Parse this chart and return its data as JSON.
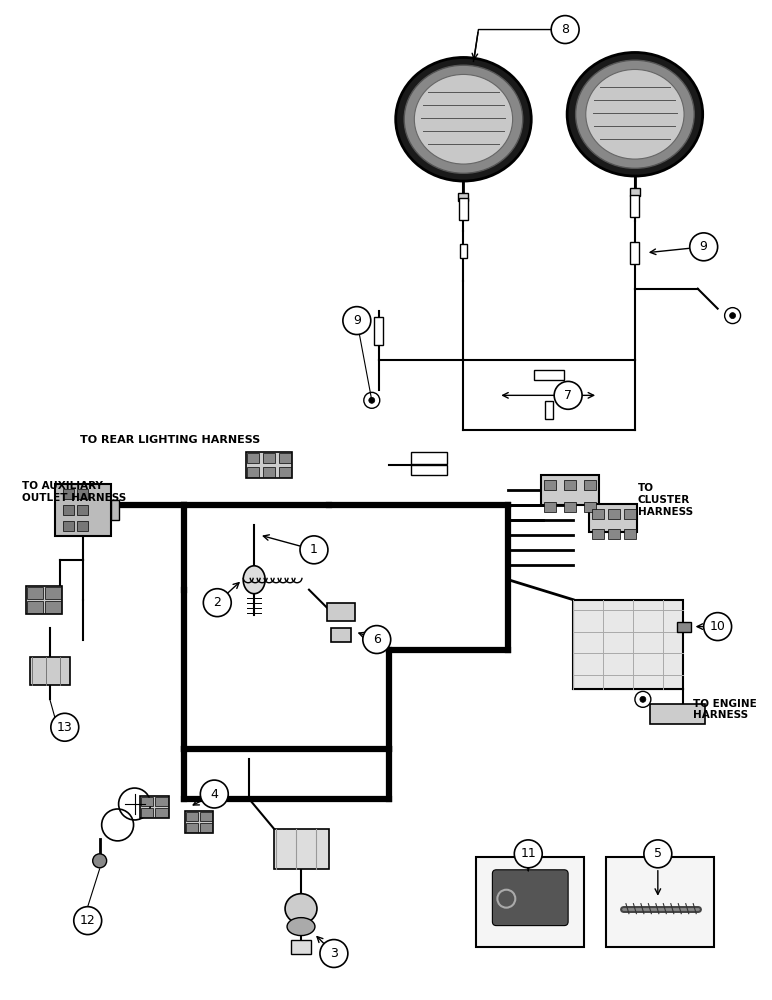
{
  "bg_color": "#ffffff",
  "line_color": "#000000",
  "fig_width": 7.72,
  "fig_height": 10.0,
  "labels": {
    "to_rear": "TO REAR LIGHTING HARNESS",
    "to_aux": "TO AUXILIARY\nOUTLET HARNESS",
    "to_cluster": "TO\nCLUSTER\nHARNESS",
    "to_engine": "TO ENGINE\nHARNESS"
  }
}
